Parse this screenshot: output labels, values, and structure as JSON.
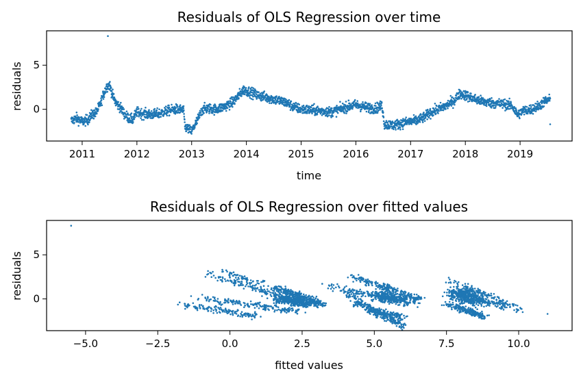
{
  "chart_data": [
    {
      "type": "scatter",
      "title": "Residuals of OLS Regression over time",
      "xlabel": "time",
      "ylabel": "residuals",
      "x_ticks": [
        "2011",
        "2012",
        "2013",
        "2014",
        "2015",
        "2016",
        "2017",
        "2018",
        "2019"
      ],
      "y_ticks": [
        0,
        5
      ],
      "xlim": [
        2010.35,
        2019.95
      ],
      "ylim": [
        -3.6,
        8.9
      ],
      "color": "#1f77b4",
      "trend": [
        [
          2010.8,
          -1.3
        ],
        [
          2010.9,
          -1.0
        ],
        [
          2011.0,
          -1.4
        ],
        [
          2011.1,
          -1.2
        ],
        [
          2011.18,
          -0.6
        ],
        [
          2011.25,
          -0.4
        ],
        [
          2011.32,
          0.4
        ],
        [
          2011.38,
          1.5
        ],
        [
          2011.44,
          2.5
        ],
        [
          2011.5,
          2.8
        ],
        [
          2011.56,
          1.5
        ],
        [
          2011.62,
          0.7
        ],
        [
          2011.7,
          0.2
        ],
        [
          2011.78,
          -0.6
        ],
        [
          2011.85,
          -1.0
        ],
        [
          2011.92,
          -1.2
        ],
        [
          2012.0,
          -0.3
        ],
        [
          2012.1,
          -0.5
        ],
        [
          2012.25,
          -0.6
        ],
        [
          2012.4,
          -0.5
        ],
        [
          2012.55,
          -0.2
        ],
        [
          2012.7,
          0.0
        ],
        [
          2012.85,
          -0.1
        ],
        [
          2012.88,
          -2.0
        ],
        [
          2013.0,
          -2.5
        ],
        [
          2013.1,
          -1.3
        ],
        [
          2013.2,
          0.0
        ],
        [
          2013.3,
          0.1
        ],
        [
          2013.45,
          0.0
        ],
        [
          2013.6,
          0.3
        ],
        [
          2013.75,
          0.8
        ],
        [
          2013.85,
          1.5
        ],
        [
          2013.95,
          2.2
        ],
        [
          2014.05,
          2.0
        ],
        [
          2014.2,
          1.6
        ],
        [
          2014.4,
          1.3
        ],
        [
          2014.6,
          1.0
        ],
        [
          2014.75,
          0.7
        ],
        [
          2014.85,
          0.3
        ],
        [
          2015.0,
          0.0
        ],
        [
          2015.2,
          -0.1
        ],
        [
          2015.4,
          -0.2
        ],
        [
          2015.55,
          -0.3
        ],
        [
          2015.7,
          0.0
        ],
        [
          2015.85,
          0.3
        ],
        [
          2016.0,
          0.5
        ],
        [
          2016.2,
          0.2
        ],
        [
          2016.35,
          0.1
        ],
        [
          2016.48,
          0.4
        ],
        [
          2016.52,
          -1.7
        ],
        [
          2016.7,
          -1.8
        ],
        [
          2016.9,
          -1.5
        ],
        [
          2017.1,
          -1.3
        ],
        [
          2017.25,
          -0.9
        ],
        [
          2017.35,
          -0.4
        ],
        [
          2017.5,
          0.0
        ],
        [
          2017.65,
          0.4
        ],
        [
          2017.8,
          1.0
        ],
        [
          2017.9,
          1.8
        ],
        [
          2018.0,
          1.6
        ],
        [
          2018.15,
          1.2
        ],
        [
          2018.3,
          0.9
        ],
        [
          2018.5,
          0.7
        ],
        [
          2018.7,
          0.6
        ],
        [
          2018.85,
          0.4
        ],
        [
          2018.95,
          -0.6
        ],
        [
          2019.05,
          -0.2
        ],
        [
          2019.2,
          0.0
        ],
        [
          2019.35,
          0.4
        ],
        [
          2019.45,
          0.9
        ],
        [
          2019.55,
          1.1
        ]
      ],
      "outliers": [
        [
          2011.47,
          8.3
        ],
        [
          2019.55,
          -1.7
        ]
      ]
    },
    {
      "type": "scatter",
      "title": "Residuals of OLS Regression over fitted values",
      "xlabel": "fitted values",
      "ylabel": "residuals",
      "x_ticks": [
        "−5.0",
        "−2.5",
        "0.0",
        "2.5",
        "5.0",
        "7.5",
        "10.0"
      ],
      "x_tick_values": [
        -5.0,
        -2.5,
        0.0,
        2.5,
        5.0,
        7.5,
        10.0
      ],
      "y_ticks": [
        0,
        5
      ],
      "xlim": [
        -6.35,
        11.85
      ],
      "ylim": [
        -3.6,
        8.9
      ],
      "color": "#1f77b4",
      "bands": [
        [
          [
            -1.7,
            -0.6
          ],
          [
            -0.5,
            -1.2
          ],
          [
            1.0,
            -2.0
          ]
        ],
        [
          [
            -1.2,
            0.2
          ],
          [
            1.0,
            -0.8
          ],
          [
            2.5,
            -1.5
          ]
        ],
        [
          [
            -0.9,
            3.0
          ],
          [
            1.5,
            0.5
          ],
          [
            3.2,
            -0.6
          ]
        ],
        [
          [
            -0.4,
            3.3
          ],
          [
            2.0,
            0.8
          ],
          [
            3.0,
            -0.2
          ]
        ],
        [
          [
            1.5,
            1.4
          ],
          [
            3.2,
            -0.6
          ]
        ],
        [
          [
            4.2,
            2.5
          ],
          [
            6.6,
            0.0
          ]
        ],
        [
          [
            3.3,
            1.5
          ],
          [
            5.2,
            0.2
          ],
          [
            6.3,
            -0.5
          ]
        ],
        [
          [
            4.0,
            0.8
          ],
          [
            5.0,
            -1.3
          ],
          [
            6.0,
            -2.0
          ]
        ],
        [
          [
            4.3,
            -0.4
          ],
          [
            5.2,
            -1.7
          ],
          [
            6.0,
            -3.1
          ]
        ],
        [
          [
            7.5,
            2.2
          ],
          [
            9.0,
            0.3
          ],
          [
            10.1,
            -1.3
          ]
        ],
        [
          [
            7.6,
            0.9
          ],
          [
            8.5,
            0.0
          ],
          [
            9.5,
            -0.8
          ]
        ],
        [
          [
            7.5,
            -0.6
          ],
          [
            8.8,
            -2.0
          ]
        ]
      ],
      "outliers": [
        [
          -5.5,
          8.3
        ],
        [
          11.0,
          -1.7
        ]
      ]
    }
  ]
}
